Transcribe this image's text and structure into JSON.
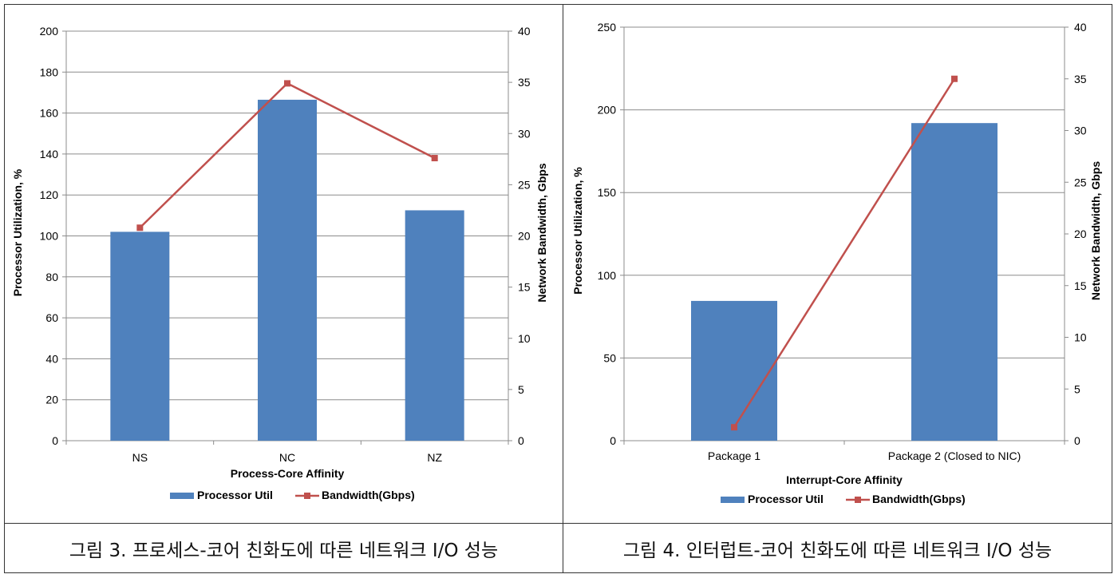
{
  "charts": [
    {
      "caption": "그림 3. 프로세스-코어 친화도에 따른 네트워크 I/O 성능",
      "chart_data": {
        "type": "bar+line",
        "categories": [
          "NS",
          "NC",
          "NZ"
        ],
        "xlabel": "Process-Core Affinity",
        "ylabel": "Processor Utilization, %",
        "y2label": "Network Bandwidth, Gbps",
        "ylim": [
          0,
          200
        ],
        "yticks": [
          0,
          20,
          40,
          60,
          80,
          100,
          120,
          140,
          160,
          180,
          200
        ],
        "y2lim": [
          0,
          40
        ],
        "y2ticks": [
          0,
          5,
          10,
          15,
          20,
          25,
          30,
          35,
          40
        ],
        "grid": true,
        "legend_position": "bottom",
        "series": [
          {
            "name": "Processor Util",
            "type": "bar",
            "axis": "left",
            "color": "#4f81bd",
            "values": [
              102,
              166.5,
              112.5
            ]
          },
          {
            "name": "Bandwidth(Gbps)",
            "type": "line",
            "axis": "right",
            "color": "#c0504d",
            "values": [
              20.8,
              34.9,
              27.6
            ]
          }
        ]
      }
    },
    {
      "caption": "그림 4. 인터럽트-코어 친화도에 따른 네트워크 I/O 성능",
      "chart_data": {
        "type": "bar+line",
        "categories": [
          "Package 1",
          "Package 2 (Closed to NIC)"
        ],
        "xlabel": "Interrupt-Core Affinity",
        "ylabel": "Processor Utilization, %",
        "y2label": "Network Bandwidth, Gbps",
        "ylim": [
          0,
          250
        ],
        "yticks": [
          0,
          50,
          100,
          150,
          200,
          250
        ],
        "y2lim": [
          0,
          40
        ],
        "y2ticks": [
          0,
          5,
          10,
          15,
          20,
          25,
          30,
          35,
          40
        ],
        "grid": true,
        "legend_position": "bottom",
        "series": [
          {
            "name": "Processor Util",
            "type": "bar",
            "axis": "left",
            "color": "#4f81bd",
            "values": [
              84.5,
              192
            ]
          },
          {
            "name": "Bandwidth(Gbps)",
            "type": "line",
            "axis": "right",
            "color": "#c0504d",
            "values": [
              1.3,
              35
            ]
          }
        ]
      }
    }
  ]
}
